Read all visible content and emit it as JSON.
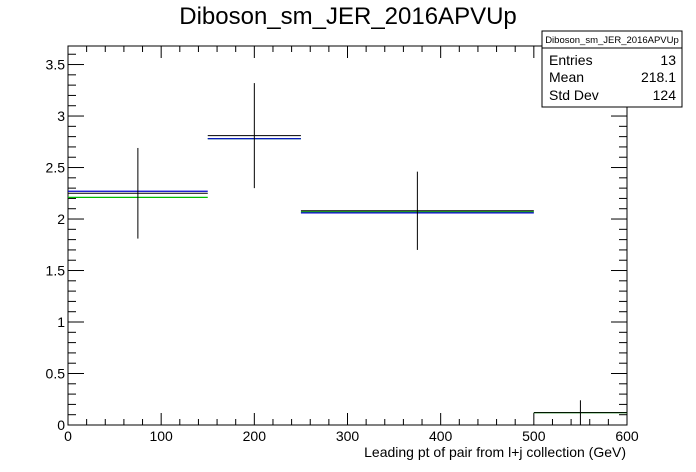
{
  "chart_data": {
    "type": "histogram",
    "title": "Diboson_sm_JER_2016APVUp",
    "xlabel": "Leading pt of pair from l+j collection (GeV)",
    "ylabel": "",
    "xlim": [
      0,
      600
    ],
    "ylim": [
      0,
      3.68
    ],
    "grid": false,
    "x_ticks": [
      0,
      100,
      200,
      300,
      400,
      500,
      600
    ],
    "y_ticks": [
      0,
      0.5,
      1,
      1.5,
      2,
      2.5,
      3,
      3.5
    ],
    "x_tick_labels": [
      "0",
      "100",
      "200",
      "300",
      "400",
      "500",
      "600"
    ],
    "y_tick_labels": [
      "0",
      "0.5",
      "1",
      "1.5",
      "2",
      "2.5",
      "3",
      "3.5"
    ],
    "bins": [
      {
        "low": 0,
        "high": 150
      },
      {
        "low": 150,
        "high": 250
      },
      {
        "low": 250,
        "high": 500
      },
      {
        "low": 500,
        "high": 600
      }
    ],
    "series": [
      {
        "color": "#000000",
        "style": "errorbars",
        "values": [
          2.25,
          2.81,
          2.08,
          0.12
        ],
        "errors": [
          0.44,
          0.51,
          0.38,
          0.12
        ]
      },
      {
        "color": "#0000cc",
        "style": "steps",
        "values": [
          2.27,
          2.78,
          2.06,
          0.0
        ]
      },
      {
        "color": "#00bb00",
        "style": "steps",
        "values": [
          2.21,
          2.78,
          2.07,
          0.12
        ]
      }
    ],
    "stats_box": {
      "title": "Diboson_sm_JER_2016APVUp",
      "rows": [
        {
          "label": "Entries",
          "value": "13"
        },
        {
          "label": "Mean",
          "value": "218.1"
        },
        {
          "label": "Std Dev",
          "value": "124"
        }
      ]
    }
  }
}
